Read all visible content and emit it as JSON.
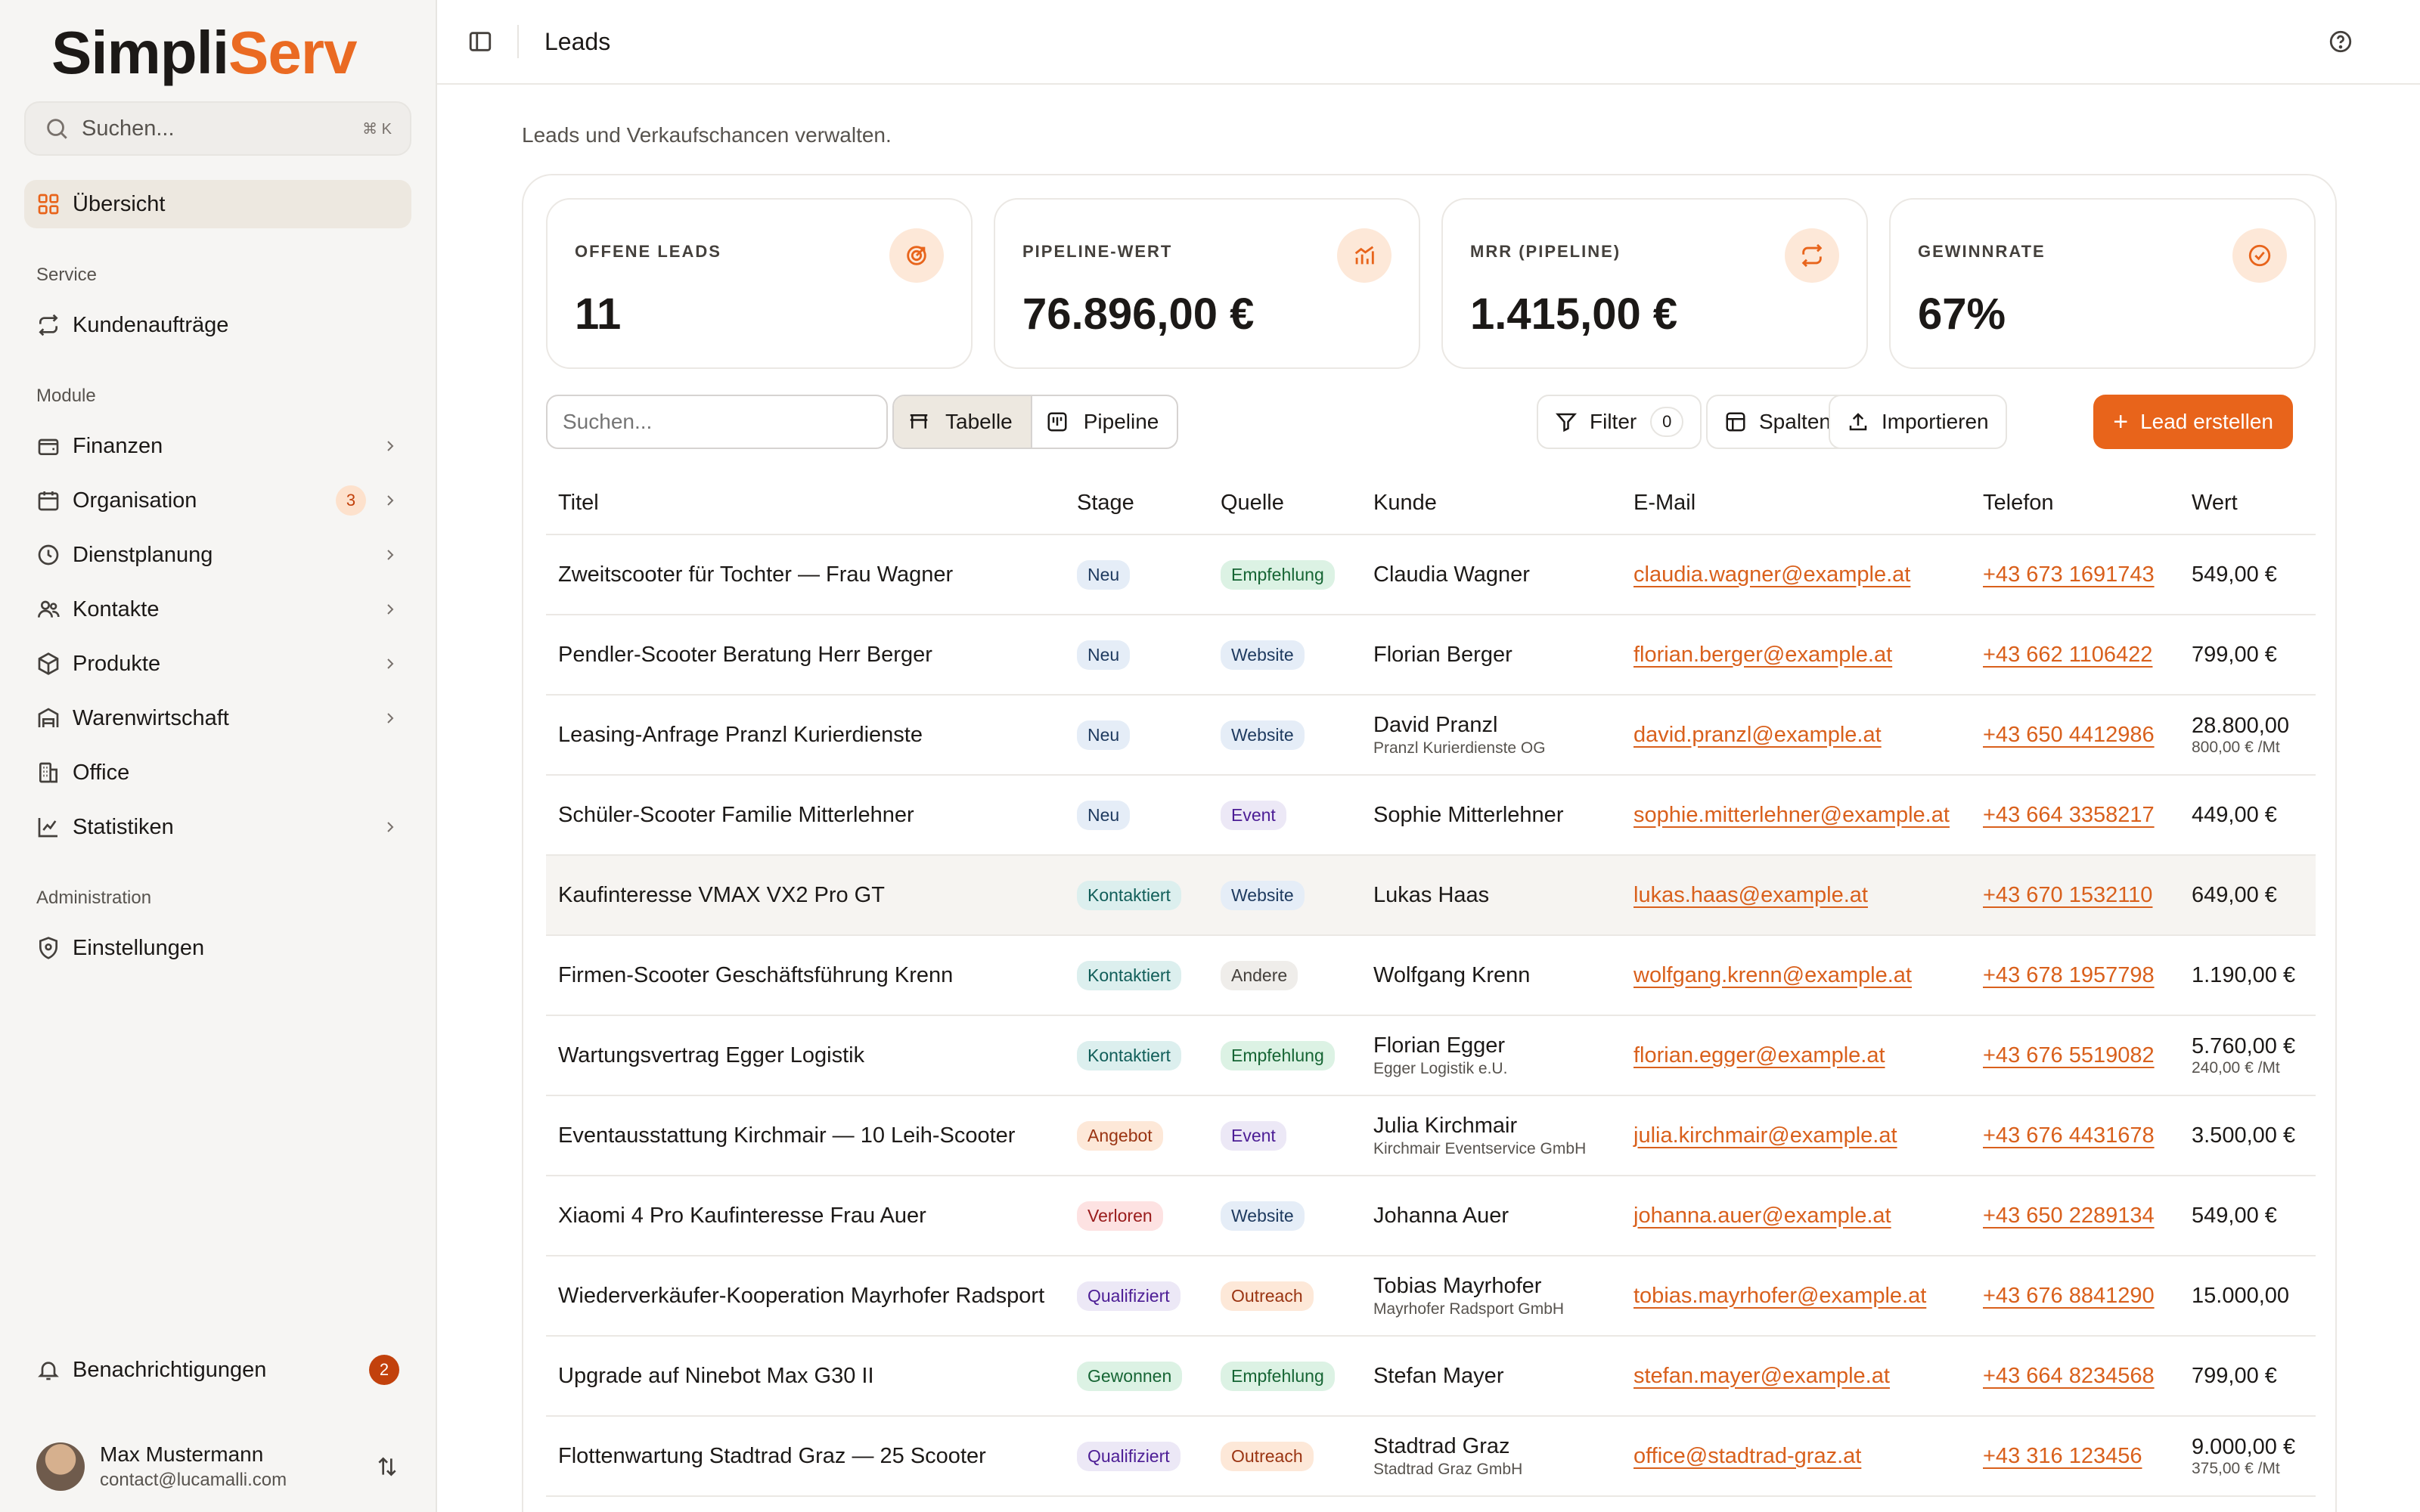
{
  "brand": {
    "part1": "Simpli",
    "part2": "Serv"
  },
  "sidebar": {
    "search_placeholder": "Suchen...",
    "shortcut": "⌘ K",
    "overview": "Übersicht",
    "section_service": "Service",
    "service_items": [
      "Kundenaufträge"
    ],
    "section_module": "Module",
    "module_items": [
      "Finanzen",
      "Organisation",
      "Dienstplanung",
      "Kontakte",
      "Produkte",
      "Warenwirtschaft",
      "Office",
      "Statistiken"
    ],
    "organisation_badge": "3",
    "section_admin": "Administration",
    "admin_items": [
      "Einstellungen"
    ],
    "notifications": "Benachrichtigungen",
    "notifications_count": "2",
    "user": {
      "name": "Max Mustermann",
      "email": "contact@lucamalli.com"
    }
  },
  "header": {
    "title": "Leads"
  },
  "subtitle": "Leads und Verkaufschancen verwalten.",
  "stats": [
    {
      "label": "OFFENE LEADS",
      "value": "11",
      "icon": "target-icon"
    },
    {
      "label": "PIPELINE-WERT",
      "value": "76.896,00 €",
      "icon": "bar-chart-icon"
    },
    {
      "label": "MRR (PIPELINE)",
      "value": "1.415,00 €",
      "icon": "repeat-icon"
    },
    {
      "label": "GEWINNRATE",
      "value": "67%",
      "icon": "check-circle-icon"
    }
  ],
  "toolbar": {
    "search_placeholder": "Suchen...",
    "view_table": "Tabelle",
    "view_pipeline": "Pipeline",
    "filter": "Filter",
    "filter_count": "0",
    "columns": "Spalten",
    "import": "Importieren",
    "create": "Lead erstellen"
  },
  "table": {
    "headers": [
      "Titel",
      "Stage",
      "Quelle",
      "Kunde",
      "E-Mail",
      "Telefon",
      "Wert"
    ],
    "rows": [
      {
        "title": "Zweitscooter für Tochter — Frau Wagner",
        "stage": "Neu",
        "source": "Empfehlung",
        "customer": "Claudia Wagner",
        "company": "",
        "email": "claudia.wagner@example.at",
        "phone": "+43 673 1691743",
        "value": "549,00 €",
        "value_sub": ""
      },
      {
        "title": "Pendler-Scooter Beratung Herr Berger",
        "stage": "Neu",
        "source": "Website",
        "customer": "Florian Berger",
        "company": "",
        "email": "florian.berger@example.at",
        "phone": "+43 662 1106422",
        "value": "799,00 €",
        "value_sub": ""
      },
      {
        "title": "Leasing-Anfrage Pranzl Kurierdienste",
        "stage": "Neu",
        "source": "Website",
        "customer": "David Pranzl",
        "company": "Pranzl Kurierdienste OG",
        "email": "david.pranzl@example.at",
        "phone": "+43 650 4412986",
        "value": "28.800,00",
        "value_sub": "800,00 € /Mt"
      },
      {
        "title": "Schüler-Scooter Familie Mitterlehner",
        "stage": "Neu",
        "source": "Event",
        "customer": "Sophie Mitterlehner",
        "company": "",
        "email": "sophie.mitterlehner@example.at",
        "phone": "+43 664 3358217",
        "value": "449,00 €",
        "value_sub": ""
      },
      {
        "title": "Kaufinteresse VMAX VX2 Pro GT",
        "stage": "Kontaktiert",
        "source": "Website",
        "customer": "Lukas Haas",
        "company": "",
        "email": "lukas.haas@example.at",
        "phone": "+43 670 1532110",
        "value": "649,00 €",
        "value_sub": ""
      },
      {
        "title": "Firmen-Scooter Geschäftsführung Krenn",
        "stage": "Kontaktiert",
        "source": "Andere",
        "customer": "Wolfgang Krenn",
        "company": "",
        "email": "wolfgang.krenn@example.at",
        "phone": "+43 678 1957798",
        "value": "1.190,00 €",
        "value_sub": ""
      },
      {
        "title": "Wartungsvertrag Egger Logistik",
        "stage": "Kontaktiert",
        "source": "Empfehlung",
        "customer": "Florian Egger",
        "company": "Egger Logistik e.U.",
        "email": "florian.egger@example.at",
        "phone": "+43 676 5519082",
        "value": "5.760,00 €",
        "value_sub": "240,00 € /Mt"
      },
      {
        "title": "Eventausstattung Kirchmair — 10 Leih-Scooter",
        "stage": "Angebot",
        "source": "Event",
        "customer": "Julia Kirchmair",
        "company": "Kirchmair Eventservice GmbH",
        "email": "julia.kirchmair@example.at",
        "phone": "+43 676 4431678",
        "value": "3.500,00 €",
        "value_sub": ""
      },
      {
        "title": "Xiaomi 4 Pro Kaufinteresse Frau Auer",
        "stage": "Verloren",
        "source": "Website",
        "customer": "Johanna Auer",
        "company": "",
        "email": "johanna.auer@example.at",
        "phone": "+43 650 2289134",
        "value": "549,00 €",
        "value_sub": ""
      },
      {
        "title": "Wiederverkäufer-Kooperation Mayrhofer Radsport",
        "stage": "Qualifiziert",
        "source": "Outreach",
        "customer": "Tobias Mayrhofer",
        "company": "Mayrhofer Radsport GmbH",
        "email": "tobias.mayrhofer@example.at",
        "phone": "+43 676 8841290",
        "value": "15.000,00",
        "value_sub": ""
      },
      {
        "title": "Upgrade auf Ninebot Max G30 II",
        "stage": "Gewonnen",
        "source": "Empfehlung",
        "customer": "Stefan Mayer",
        "company": "",
        "email": "stefan.mayer@example.at",
        "phone": "+43 664 8234568",
        "value": "799,00 €",
        "value_sub": ""
      },
      {
        "title": "Flottenwartung Stadtrad Graz — 25 Scooter",
        "stage": "Qualifiziert",
        "source": "Outreach",
        "customer": "Stadtrad Graz",
        "company": "Stadtrad Graz GmbH",
        "email": "office@stadtrad-graz.at",
        "phone": "+43 316 123456",
        "value": "9.000,00 €",
        "value_sub": "375,00 € /Mt"
      }
    ]
  },
  "colors": {
    "accent": "#e8641b",
    "brand_orange": "#ea6a22",
    "text": "#1c1917"
  }
}
